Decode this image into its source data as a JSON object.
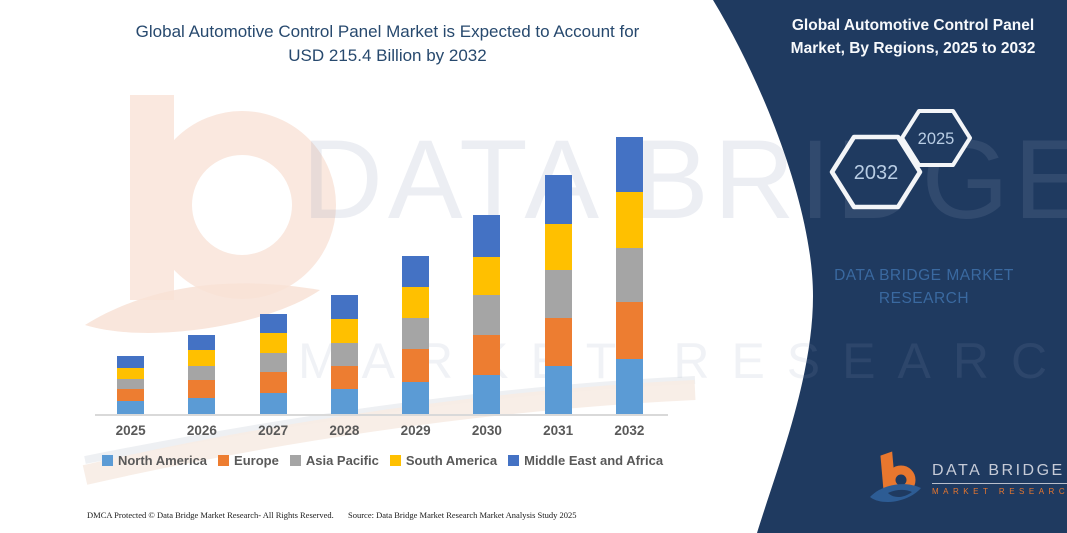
{
  "colors": {
    "panel_navy": "#1f3a60",
    "title_blue": "#27496e",
    "axis_gray": "#595959",
    "logo_orange": "#e8772e",
    "logo_silver": "#c6cbd7",
    "wordmark_blue": "#3a69a0"
  },
  "left": {
    "title_line1": "Global Automotive Control Panel Market is Expected to Account for",
    "title_line2": "USD 215.4 Billion by 2032",
    "footer_left": "DMCA Protected © Data Bridge Market Research- All Rights Reserved.",
    "footer_right": "Source: Data Bridge Market Research Market Analysis Study 2025"
  },
  "right_panel": {
    "title_line1": "Global Automotive Control Panel",
    "title_line2": "Market, By Regions, 2025 to 2032",
    "hexagons": [
      {
        "label": "2032"
      },
      {
        "label": "2025"
      }
    ],
    "wordmark_line1": "DATA BRIDGE MARKET",
    "wordmark_line2": "RESEARCH",
    "logo": {
      "brand": "DATA BRIDGE",
      "sub": "MARKET RESEARCH"
    }
  },
  "watermark": {
    "row1": "DATA BRIDGE",
    "row2": "MARKET RESEARCH"
  },
  "chart_data": {
    "type": "bar",
    "stacked": true,
    "title": "Global Automotive Control Panel Market is Expected to Account for USD 215.4 Billion by 2032",
    "unit": "USD Billion",
    "categories": [
      "2025",
      "2026",
      "2027",
      "2028",
      "2029",
      "2030",
      "2031",
      "2032"
    ],
    "series": [
      {
        "name": "North America",
        "color": "#5B9BD5",
        "values": [
          10.5,
          12.1,
          16.0,
          19.5,
          24.9,
          30.0,
          37.0,
          42.8
        ]
      },
      {
        "name": "Europe",
        "color": "#ED7D31",
        "values": [
          8.6,
          14.0,
          16.4,
          17.5,
          25.7,
          31.2,
          37.4,
          44.0
        ]
      },
      {
        "name": "Asia Pacific",
        "color": "#A5A5A5",
        "values": [
          7.8,
          10.9,
          14.8,
          17.9,
          23.8,
          31.2,
          37.4,
          42.1
        ]
      },
      {
        "name": "South America",
        "color": "#FFC000",
        "values": [
          9.3,
          12.5,
          15.6,
          18.7,
          24.2,
          29.6,
          36.2,
          43.6
        ]
      },
      {
        "name": "Middle East and Africa",
        "color": "#4472C4",
        "values": [
          9.3,
          12.1,
          15.2,
          19.1,
          24.5,
          32.7,
          37.8,
          42.8
        ]
      }
    ],
    "totals_by_year": [
      45.5,
      61.6,
      78.0,
      92.7,
      123.1,
      154.7,
      185.8,
      215.4
    ],
    "highlight_total_2032": 215.4,
    "xlabel": "",
    "ylabel": "",
    "ylim": [
      0,
      221
    ],
    "grid": false,
    "y_axis_shown": false,
    "legend_position": "bottom"
  }
}
